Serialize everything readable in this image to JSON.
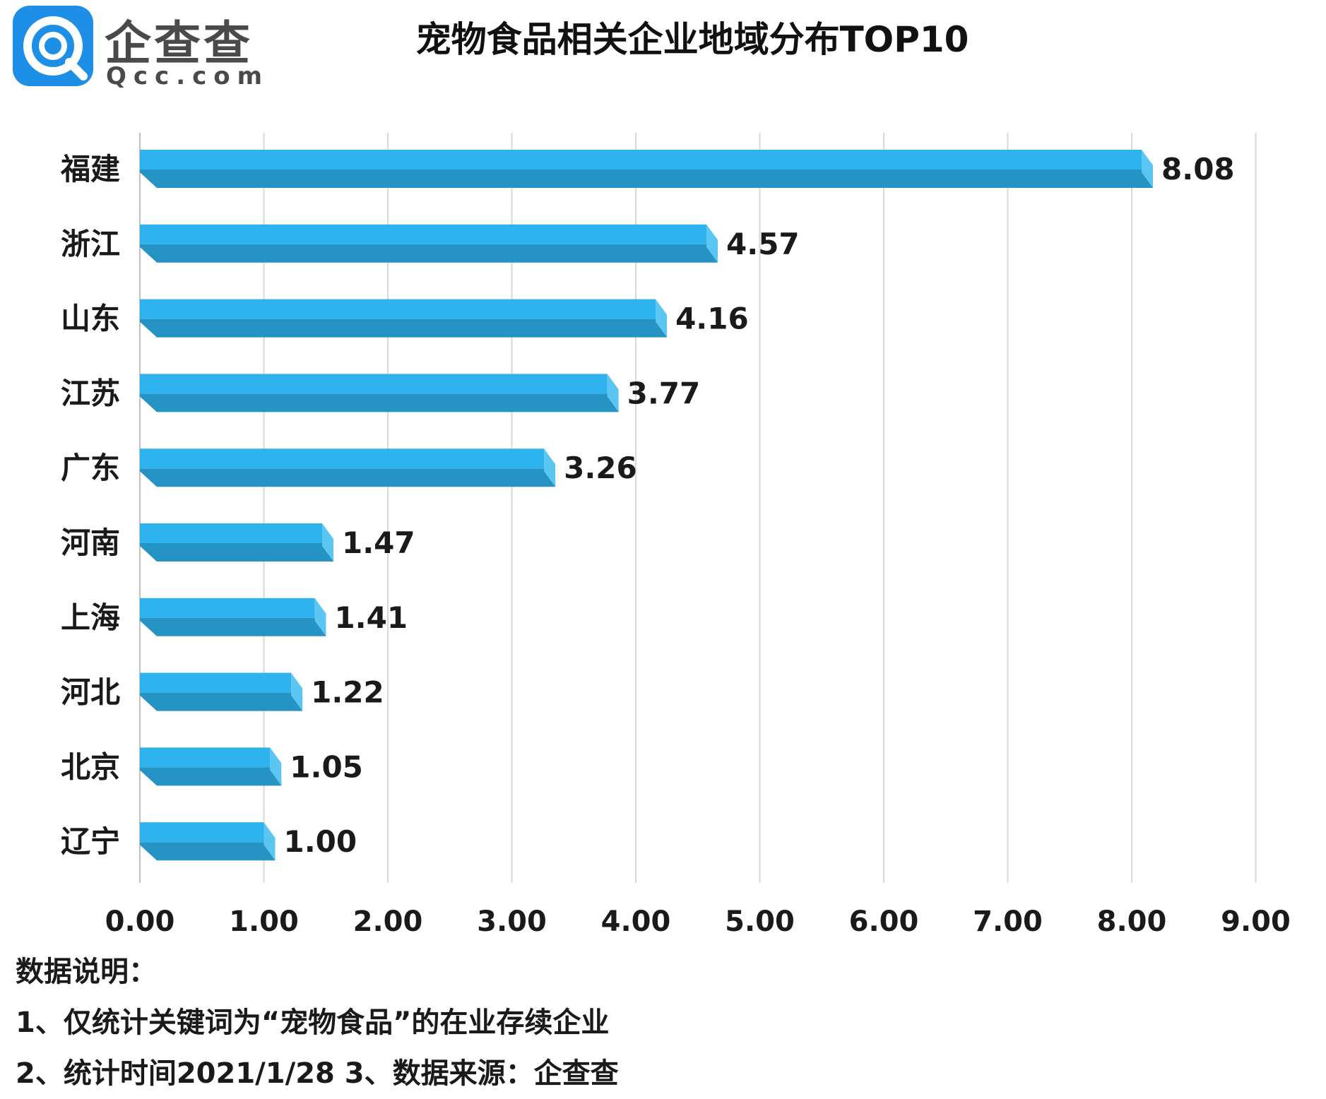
{
  "logo": {
    "brand": "企查查",
    "domain": "Qcc.com"
  },
  "title": "宠物食品相关企业地域分布TOP10",
  "chart_data": {
    "type": "bar",
    "orientation": "horizontal",
    "title": "宠物食品相关企业地域分布TOP10",
    "categories": [
      "福建",
      "浙江",
      "山东",
      "江苏",
      "广东",
      "河南",
      "上海",
      "河北",
      "北京",
      "辽宁"
    ],
    "values": [
      8.08,
      4.57,
      4.16,
      3.77,
      3.26,
      1.47,
      1.41,
      1.22,
      1.05,
      1.0
    ],
    "value_labels": [
      "8.08",
      "4.57",
      "4.16",
      "3.77",
      "3.26",
      "1.47",
      "1.41",
      "1.22",
      "1.05",
      "1.00"
    ],
    "xticks": [
      "0.00",
      "1.00",
      "2.00",
      "3.00",
      "4.00",
      "5.00",
      "6.00",
      "7.00",
      "8.00",
      "9.00"
    ],
    "xlim": [
      0,
      9
    ],
    "grid": "vertical",
    "bar_color": "#2fb3ee",
    "bar_shade_color": "#2594c4",
    "xlabel": "",
    "ylabel": ""
  },
  "notes": {
    "heading": "数据说明：",
    "line1": "1、仅统计关键词为“宠物食品”的在业存续企业",
    "line2": "2、统计时间2021/1/28    3、数据来源：企查查"
  },
  "colors": {
    "logo_blue": "#1e8fe6",
    "grid": "#d9d9d9"
  }
}
